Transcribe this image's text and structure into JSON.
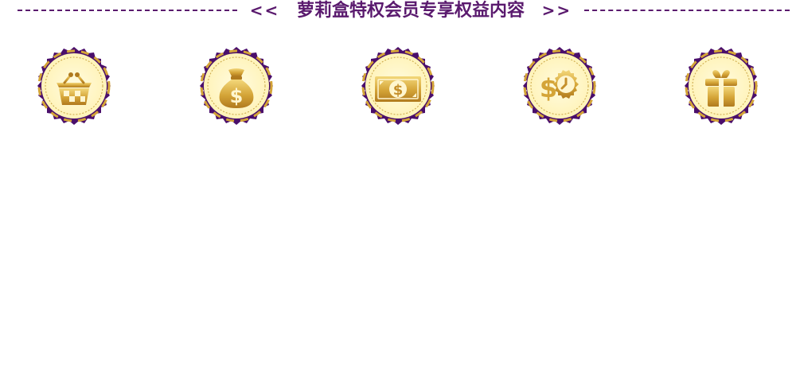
{
  "header": {
    "left_arrows": "<<",
    "title": "萝莉盒特权会员专享权益内容",
    "right_arrows": ">>"
  },
  "colors": {
    "accent": "#5a1a6e",
    "gold": "#d4a437",
    "cream": "#fff8cc"
  },
  "badges": [
    {
      "icon": "shopping-basket-icon"
    },
    {
      "icon": "money-bag-icon"
    },
    {
      "icon": "banknote-icon"
    },
    {
      "icon": "dollar-clock-icon"
    },
    {
      "icon": "gift-box-icon"
    }
  ]
}
